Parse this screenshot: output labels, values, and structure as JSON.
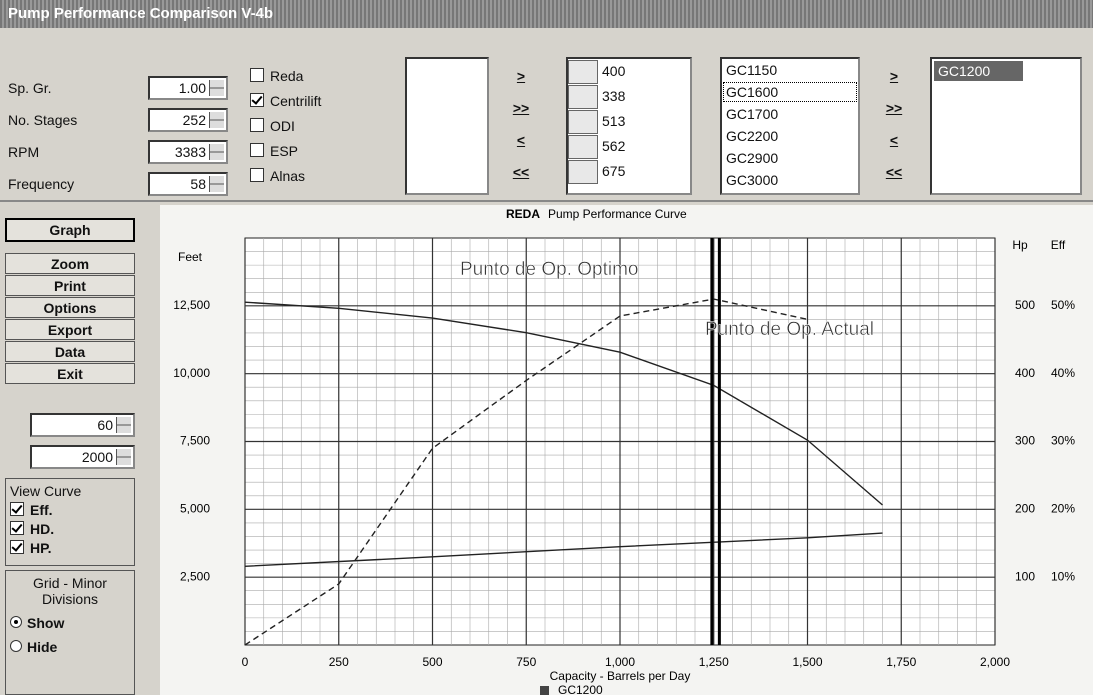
{
  "window": {
    "title": "Pump Performance Comparison V-4b"
  },
  "params": [
    {
      "label": "Sp. Gr.",
      "value": "1.00"
    },
    {
      "label": "No. Stages",
      "value": "252"
    },
    {
      "label": "RPM",
      "value": "3383"
    },
    {
      "label": "Frequency",
      "value": "58"
    }
  ],
  "manufacturers": [
    {
      "name": "Reda",
      "checked": false
    },
    {
      "name": "Centrilift",
      "checked": true
    },
    {
      "name": "ODI",
      "checked": false
    },
    {
      "name": "ESP",
      "checked": false
    },
    {
      "name": "Alnas",
      "checked": false
    }
  ],
  "move_buttons": [
    ">",
    ">>",
    "<",
    "<<"
  ],
  "sizes": [
    "400",
    "338",
    "513",
    "562",
    "675"
  ],
  "models": [
    "GC1150",
    "GC1600",
    "GC1700",
    "GC2200",
    "GC2900",
    "GC3000"
  ],
  "selected_models": [
    "GC1200"
  ],
  "menu": [
    "Graph",
    "Zoom",
    "Print",
    "Options",
    "Export",
    "Data",
    "Exit"
  ],
  "spinners": [
    "60",
    "2000"
  ],
  "view_curve": {
    "title": "View Curve",
    "options": [
      {
        "label": "Eff.",
        "checked": true
      },
      {
        "label": "HD.",
        "checked": true
      },
      {
        "label": "HP.",
        "checked": true
      }
    ]
  },
  "grid_divisions": {
    "title": "Grid - Minor Divisions",
    "options": [
      {
        "label": "Show",
        "selected": true
      },
      {
        "label": "Hide",
        "selected": false
      }
    ]
  },
  "chart_data": {
    "type": "line",
    "manufacturer": "REDA",
    "title": "Pump Performance Curve",
    "x_label": "Capacity - Barrels per Day",
    "y_label": "Feet",
    "y2_label": "Hp",
    "y3_label": "Eff",
    "xlim": [
      0,
      2000
    ],
    "xticks": [
      0,
      250,
      500,
      750,
      {
        "value": 1000,
        "label": "1,000"
      },
      {
        "value": 1250,
        "label": "1,250"
      },
      {
        "value": 1500,
        "label": "1,500"
      },
      {
        "value": 1750,
        "label": "1,750"
      },
      {
        "value": 2000,
        "label": "2,000"
      }
    ],
    "ylim": [
      0,
      15000
    ],
    "yticks": [
      {
        "value": 2500,
        "label": "2,500"
      },
      {
        "value": 5000,
        "label": "5,000"
      },
      {
        "value": 7500,
        "label": "7,500"
      },
      {
        "value": 10000,
        "label": "10,000"
      },
      {
        "value": 12500,
        "label": "12,500"
      }
    ],
    "y2lim": [
      0,
      600
    ],
    "y2ticks": [
      100,
      200,
      300,
      400,
      500
    ],
    "y3lim": [
      0,
      60
    ],
    "y3ticks": [
      {
        "value": 10,
        "label": "10%"
      },
      {
        "value": 20,
        "label": "20%"
      },
      {
        "value": 30,
        "label": "30%"
      },
      {
        "value": 40,
        "label": "40%"
      },
      {
        "value": 50,
        "label": "50%"
      }
    ],
    "grid": true,
    "minor_grid": true,
    "series": [
      {
        "axis": "y",
        "color": "#222",
        "dashed": false,
        "x": [
          0,
          250,
          500,
          750,
          1000,
          1250,
          1500,
          1700
        ],
        "values": [
          12635,
          12410,
          12050,
          11510,
          10790,
          9570,
          7550,
          5160
        ]
      },
      {
        "axis": "y3",
        "color": "#222",
        "dashed": true,
        "x": [
          0,
          250,
          500,
          750,
          1000,
          1250,
          1500
        ],
        "values": [
          0,
          9,
          29,
          39,
          48.5,
          51,
          48
        ]
      },
      {
        "axis": "y2",
        "color": "#222",
        "dashed": false,
        "x": [
          0,
          500,
          1000,
          1500,
          1700
        ],
        "values": [
          116,
          130,
          145,
          158,
          165
        ]
      }
    ],
    "annotations": [
      {
        "text": "Punto de Op. Optimo",
        "x": 1245
      },
      {
        "text": "Punto de Op. Actual",
        "x": 1265
      }
    ],
    "legend": {
      "label": "GC1200",
      "color": "#444"
    }
  }
}
